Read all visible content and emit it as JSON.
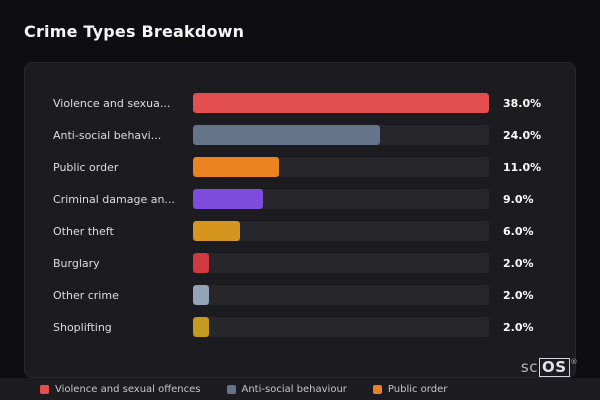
{
  "page": {
    "title": "Crime Types Breakdown",
    "background": "#0e0e12",
    "watermark": {
      "prefix": "sc",
      "suffix": "OS",
      "reg": "®"
    }
  },
  "chart_data": {
    "type": "bar",
    "orientation": "horizontal",
    "title": "Crime Types Breakdown",
    "categories": [
      "Violence and sexua...",
      "Anti-social behavi...",
      "Public order",
      "Criminal damage an...",
      "Other theft",
      "Burglary",
      "Other crime",
      "Shoplifting"
    ],
    "values": [
      38.0,
      24.0,
      11.0,
      9.0,
      6.0,
      2.0,
      2.0,
      2.0
    ],
    "value_labels": [
      "38.0%",
      "24.0%",
      "11.0%",
      "9.0%",
      "6.0%",
      "2.0%",
      "2.0%",
      "2.0%"
    ],
    "colors": [
      "#e34f4f",
      "#64748b",
      "#ea831f",
      "#7e4bdc",
      "#d6951c",
      "#d03a3f",
      "#94a3b8",
      "#c39a1d"
    ],
    "xlim": [
      0,
      38
    ],
    "grid": false,
    "track_color": "#26262b",
    "legend_position": "bottom",
    "legend": [
      {
        "label": "Violence and sexual offences",
        "color": "#e34f4f"
      },
      {
        "label": "Anti-social behaviour",
        "color": "#64748b"
      },
      {
        "label": "Public order",
        "color": "#ea831f"
      }
    ]
  }
}
